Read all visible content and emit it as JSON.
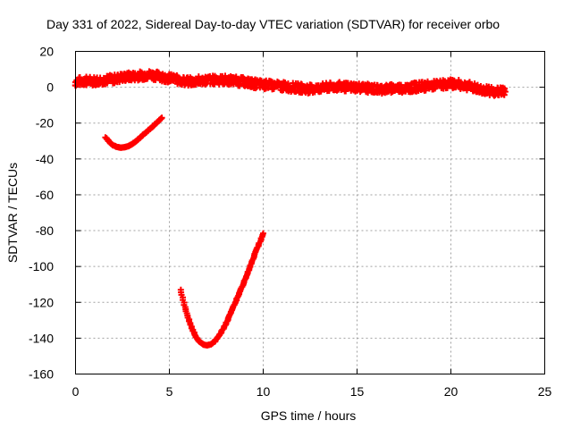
{
  "chart_data": {
    "type": "scatter",
    "title": "Day 331 of 2022, Sidereal Day-to-day VTEC variation (SDTVAR) for receiver orbo",
    "xlabel": "GPS time / hours",
    "ylabel": "SDTVAR / TECUs",
    "xlim": [
      0,
      25
    ],
    "ylim": [
      -160,
      20
    ],
    "xticks": [
      0,
      5,
      10,
      15,
      20,
      25
    ],
    "yticks": [
      20,
      0,
      -20,
      -40,
      -60,
      -80,
      -100,
      -120,
      -140,
      -160
    ],
    "grid": true,
    "marker": "plus",
    "series_color": "#ff0000",
    "series": [
      {
        "name": "main-band",
        "x": [
          0.0,
          0.5,
          1.0,
          1.5,
          2.0,
          2.5,
          3.0,
          3.5,
          4.0,
          4.5,
          5.0,
          5.5,
          6.0,
          6.5,
          7.0,
          7.5,
          8.0,
          8.5,
          9.0,
          9.5,
          10.0,
          10.5,
          11.0,
          11.5,
          12.0,
          12.5,
          13.0,
          13.5,
          14.0,
          14.5,
          15.0,
          15.5,
          16.0,
          16.5,
          17.0,
          17.5,
          18.0,
          18.5,
          19.0,
          19.5,
          20.0,
          20.5,
          21.0,
          21.5,
          22.0,
          22.5,
          22.9
        ],
        "y": [
          3.0,
          3.5,
          3.5,
          4.0,
          4.5,
          5.5,
          6.0,
          6.5,
          7.0,
          6.0,
          5.0,
          4.0,
          3.0,
          3.5,
          4.0,
          4.0,
          4.0,
          3.5,
          3.0,
          2.0,
          1.5,
          1.0,
          0.5,
          0.0,
          -0.5,
          -1.0,
          -0.5,
          0.0,
          0.5,
          0.0,
          0.0,
          -0.5,
          -1.0,
          -1.0,
          -0.5,
          -0.5,
          0.0,
          0.5,
          1.0,
          1.5,
          2.0,
          1.5,
          0.5,
          -1.0,
          -2.0,
          -2.5,
          -2.5
        ],
        "spread": 2.5
      },
      {
        "name": "arc-1",
        "x": [
          1.6,
          1.8,
          2.0,
          2.2,
          2.4,
          2.6,
          2.8,
          3.0,
          3.2,
          3.4,
          3.6,
          3.8,
          4.0,
          4.2,
          4.4,
          4.6
        ],
        "y": [
          -28.0,
          -30.5,
          -32.3,
          -33.3,
          -33.7,
          -33.5,
          -32.9,
          -31.8,
          -30.3,
          -28.5,
          -26.6,
          -24.8,
          -23.0,
          -21.0,
          -19.0,
          -17.0
        ],
        "spread": 0.5
      },
      {
        "name": "arc-2",
        "x": [
          5.6,
          5.8,
          6.0,
          6.2,
          6.4,
          6.6,
          6.8,
          7.0,
          7.2,
          7.4,
          7.6,
          7.8,
          8.0,
          8.2,
          8.4,
          8.6,
          8.8,
          9.0,
          9.2,
          9.4,
          9.6,
          9.8,
          10.0
        ],
        "y": [
          -113.0,
          -121.5,
          -128.5,
          -134.5,
          -139.0,
          -142.0,
          -143.5,
          -144.0,
          -143.5,
          -142.0,
          -139.5,
          -136.0,
          -132.0,
          -127.5,
          -123.0,
          -118.0,
          -113.0,
          -108.0,
          -103.0,
          -97.5,
          -92.0,
          -87.0,
          -81.5
        ],
        "spread": 0.5
      }
    ]
  }
}
